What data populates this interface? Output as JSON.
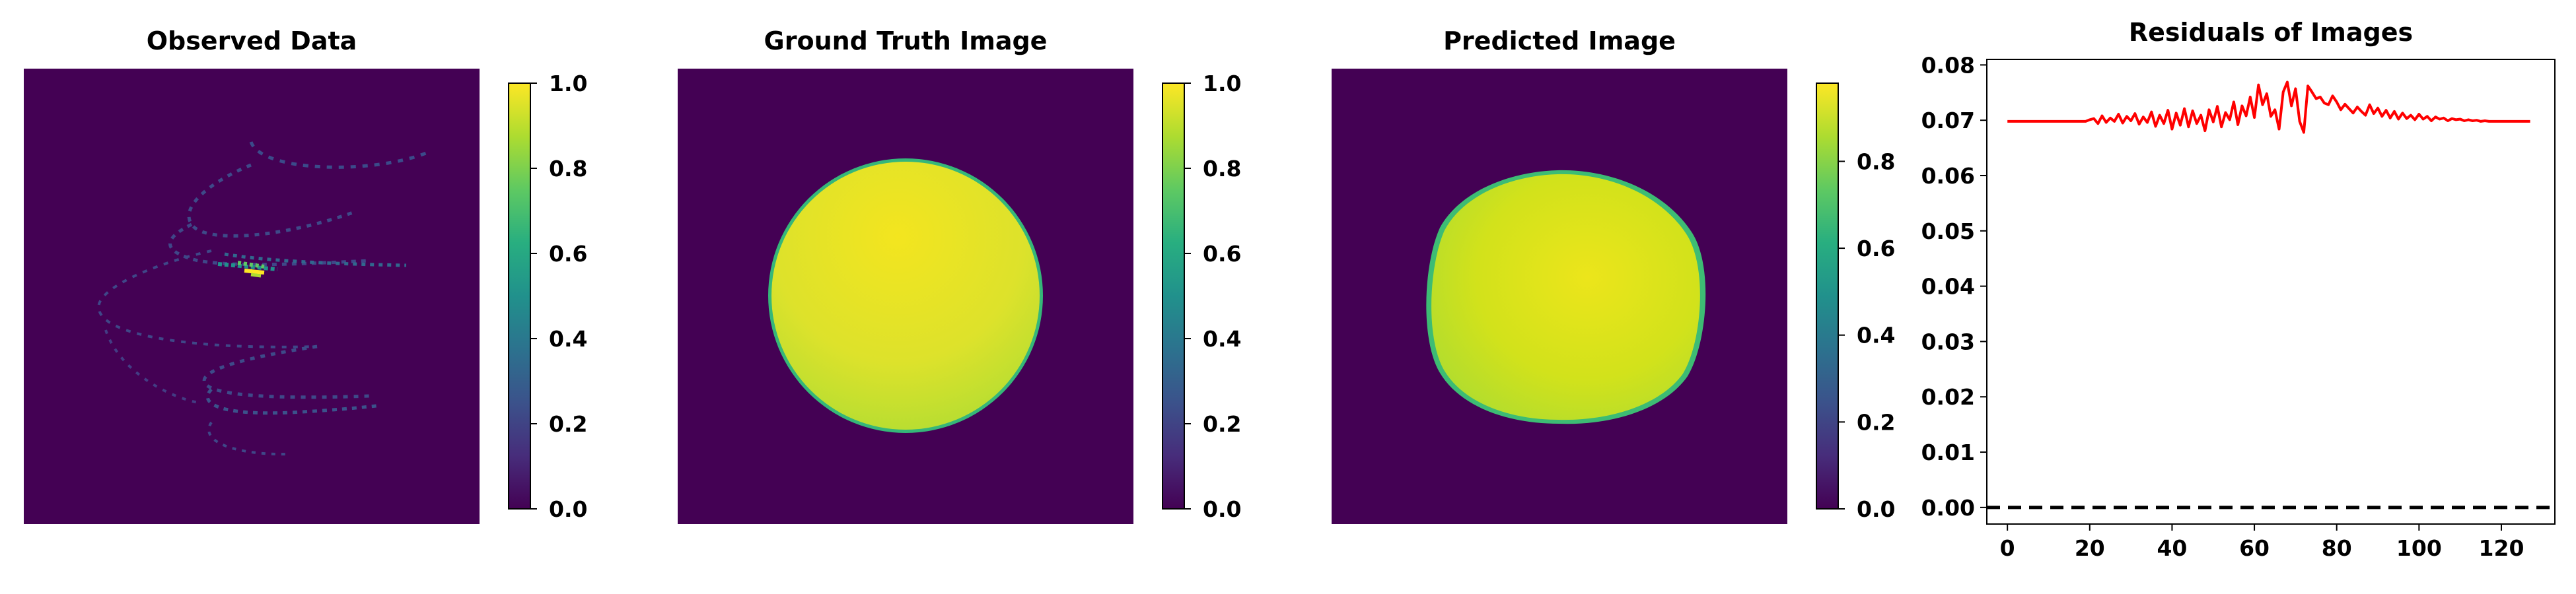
{
  "chart_data": [
    {
      "type": "heatmap",
      "title": "Observed Data",
      "image": "sparse-helix-projection",
      "colormap": "viridis",
      "colorbar": {
        "ticks": [
          "0.0",
          "0.2",
          "0.4",
          "0.6",
          "0.8",
          "1.0"
        ],
        "range": [
          0,
          1
        ]
      },
      "axes_visible": false
    },
    {
      "type": "heatmap",
      "title": "Ground Truth Image",
      "image": "filled-disk",
      "colormap": "viridis",
      "colorbar": {
        "ticks": [
          "0.0",
          "0.2",
          "0.4",
          "0.6",
          "0.8",
          "1.0"
        ],
        "range": [
          0,
          1
        ]
      },
      "axes_visible": false
    },
    {
      "type": "heatmap",
      "title": "Predicted Image",
      "image": "reconstructed-disk",
      "colormap": "viridis",
      "colorbar": {
        "ticks": [
          "0.0",
          "0.2",
          "0.4",
          "0.6",
          "0.8"
        ],
        "range": [
          0,
          0.98
        ]
      },
      "axes_visible": false
    },
    {
      "type": "line",
      "title": "Residuals of Images",
      "xlim": [
        -5,
        133
      ],
      "ylim": [
        -0.003,
        0.081
      ],
      "xticks": [
        "0",
        "20",
        "40",
        "60",
        "80",
        "100",
        "120"
      ],
      "yticks": [
        "0.00",
        "0.01",
        "0.02",
        "0.03",
        "0.04",
        "0.05",
        "0.06",
        "0.07",
        "0.08"
      ],
      "grid": false,
      "series": [
        {
          "color": "#ff0000",
          "x": [
            0,
            1,
            2,
            3,
            4,
            5,
            6,
            7,
            8,
            9,
            10,
            11,
            12,
            13,
            14,
            15,
            16,
            17,
            18,
            19,
            20,
            21,
            22,
            23,
            24,
            25,
            26,
            27,
            28,
            29,
            30,
            31,
            32,
            33,
            34,
            35,
            36,
            37,
            38,
            39,
            40,
            41,
            42,
            43,
            44,
            45,
            46,
            47,
            48,
            49,
            50,
            51,
            52,
            53,
            54,
            55,
            56,
            57,
            58,
            59,
            60,
            61,
            62,
            63,
            64,
            65,
            66,
            67,
            68,
            69,
            70,
            71,
            72,
            73,
            74,
            75,
            76,
            77,
            78,
            79,
            80,
            81,
            82,
            83,
            84,
            85,
            86,
            87,
            88,
            89,
            90,
            91,
            92,
            93,
            94,
            95,
            96,
            97,
            98,
            99,
            100,
            101,
            102,
            103,
            104,
            105,
            106,
            107,
            108,
            109,
            110,
            111,
            112,
            113,
            114,
            115,
            116,
            117,
            118,
            119,
            120,
            121,
            122,
            123,
            124,
            125,
            126,
            127
          ],
          "y": [
            0.0698,
            0.0698,
            0.0698,
            0.0698,
            0.0698,
            0.0698,
            0.0698,
            0.0698,
            0.0698,
            0.0698,
            0.0698,
            0.0698,
            0.0698,
            0.0698,
            0.0698,
            0.0698,
            0.0698,
            0.0698,
            0.0698,
            0.0698,
            0.0701,
            0.0703,
            0.0694,
            0.0708,
            0.0696,
            0.0704,
            0.0698,
            0.0711,
            0.0695,
            0.0707,
            0.0699,
            0.0712,
            0.0693,
            0.0706,
            0.0696,
            0.0715,
            0.0689,
            0.0709,
            0.0694,
            0.0718,
            0.0684,
            0.0713,
            0.0691,
            0.0721,
            0.0688,
            0.0717,
            0.0694,
            0.0709,
            0.0681,
            0.0719,
            0.0697,
            0.0725,
            0.0688,
            0.0714,
            0.0701,
            0.0733,
            0.0692,
            0.0726,
            0.0708,
            0.0742,
            0.0705,
            0.0764,
            0.0728,
            0.0748,
            0.0707,
            0.0719,
            0.0684,
            0.0751,
            0.0769,
            0.0726,
            0.0757,
            0.0698,
            0.0678,
            0.0762,
            0.0751,
            0.0739,
            0.0742,
            0.0731,
            0.0728,
            0.0744,
            0.0733,
            0.0719,
            0.0729,
            0.0721,
            0.0713,
            0.0724,
            0.0716,
            0.0709,
            0.0728,
            0.0712,
            0.0722,
            0.0707,
            0.0718,
            0.0704,
            0.0716,
            0.0702,
            0.0713,
            0.0703,
            0.0709,
            0.0701,
            0.0711,
            0.0702,
            0.0707,
            0.0699,
            0.0706,
            0.0702,
            0.0704,
            0.0699,
            0.0703,
            0.0701,
            0.0702,
            0.0699,
            0.0701,
            0.0699,
            0.07,
            0.0698,
            0.0699,
            0.0698,
            0.0698,
            0.0698,
            0.0698,
            0.0698,
            0.0698,
            0.0698,
            0.0698,
            0.0698,
            0.0698,
            0.0698
          ]
        },
        {
          "color": "#000000",
          "style": "dashed",
          "x": [
            -5,
            133
          ],
          "y": [
            0,
            0
          ]
        }
      ]
    }
  ]
}
